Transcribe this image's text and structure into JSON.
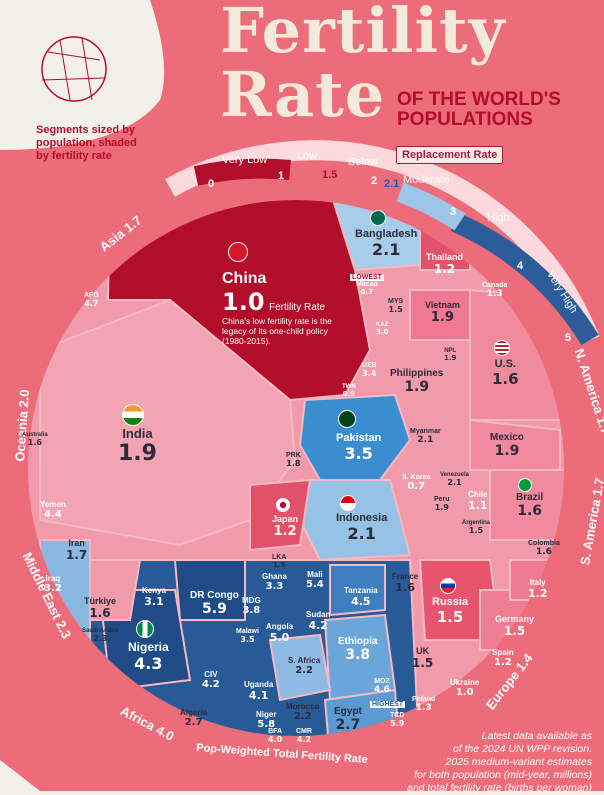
{
  "header": {
    "title_line1": "Fertility",
    "title_line2": "Rate",
    "subtitle_line1": "OF THE WORLD'S",
    "subtitle_line2": "POPULATIONS"
  },
  "legend": {
    "text": "Segments sized by population, shaded by fertility rate"
  },
  "scale": {
    "labels": [
      "Very Low",
      "Low",
      "Below",
      "Moderate",
      "High",
      "Very High"
    ],
    "ticks": [
      "0",
      "1",
      "1.5",
      "2",
      "2.1",
      "3",
      "4",
      "5"
    ],
    "replacement_label": "Replacement Rate"
  },
  "regions": {
    "asia": "Asia 1.7",
    "oceania": "Oceania 2.0",
    "middle_east": "Middle East 2.3",
    "africa": "Africa 4.0",
    "europe": "Europe 1.4",
    "s_america": "S. America 1.7",
    "n_america": "N. America 1.7"
  },
  "footer": {
    "pop_weighted": "Pop-Weighted Total Fertility Rate",
    "note_line1": "Latest data available as",
    "note_line2": "of the 2024 UN WPP revision.",
    "note_line3": "2025 medium-variant estimates",
    "note_line4": "for both population (mid-year, millions)",
    "note_line5": "and total fertility rate (births per woman)"
  },
  "china": {
    "name": "China",
    "value": "1.0",
    "unit": "Fertility Rate",
    "note": "China's low fertility rate is the legacy of its one-child policy (1980-2015)."
  },
  "macao": {
    "flag": "LOWEST",
    "name": "Macao",
    "value": "0.7"
  },
  "countries": [
    {
      "name": "India",
      "value": "1.9"
    },
    {
      "name": "Bangladesh",
      "value": "2.1"
    },
    {
      "name": "Thailand",
      "value": "1.2"
    },
    {
      "name": "Vietnam",
      "value": "1.9"
    },
    {
      "name": "Philippines",
      "value": "1.9"
    },
    {
      "name": "Pakistan",
      "value": "3.5"
    },
    {
      "name": "Indonesia",
      "value": "2.1"
    },
    {
      "name": "Japan",
      "value": "1.2"
    },
    {
      "name": "U.S.",
      "value": "1.6"
    },
    {
      "name": "Mexico",
      "value": "1.9"
    },
    {
      "name": "Brazil",
      "value": "1.6"
    },
    {
      "name": "Chile",
      "value": "1.1"
    },
    {
      "name": "S. Korea",
      "value": "0.7"
    },
    {
      "name": "Nigeria",
      "value": "4.3"
    },
    {
      "name": "DR Congo",
      "value": "5.9"
    },
    {
      "name": "Ethiopia",
      "value": "3.8"
    },
    {
      "name": "Egypt",
      "value": "2.7"
    },
    {
      "name": "Russia",
      "value": "1.5"
    },
    {
      "name": "Germany",
      "value": "1.5"
    },
    {
      "name": "Iran",
      "value": "1.7"
    },
    {
      "name": "Türkiye",
      "value": "1.6"
    },
    {
      "name": "Canada",
      "value": "1.3"
    },
    {
      "name": "UK",
      "value": "1.5"
    },
    {
      "name": "France",
      "value": "1.6"
    },
    {
      "name": "Italy",
      "value": "1.2"
    },
    {
      "name": "Spain",
      "value": "1.2"
    },
    {
      "name": "Ukraine",
      "value": "1.0"
    },
    {
      "name": "Poland",
      "value": "1.3"
    },
    {
      "name": "Tanzania",
      "value": "4.5"
    },
    {
      "name": "Kenya",
      "value": "3.1"
    },
    {
      "name": "Sudan",
      "value": "4.2"
    },
    {
      "name": "Uganda",
      "value": "4.1"
    },
    {
      "name": "Angola",
      "value": "5.0"
    },
    {
      "name": "Morocco",
      "value": "2.2"
    },
    {
      "name": "Algeria",
      "value": "2.7"
    },
    {
      "name": "S. Africa",
      "value": "2.2"
    },
    {
      "name": "Myanmar",
      "value": "2.1"
    },
    {
      "name": "Iraq",
      "value": "3.2"
    },
    {
      "name": "Yemen",
      "value": "4.4"
    },
    {
      "name": "Colombia",
      "value": "1.6"
    },
    {
      "name": "Argentina",
      "value": "1.5"
    },
    {
      "name": "Peru",
      "value": "1.9"
    },
    {
      "name": "Mali",
      "value": "5.4"
    },
    {
      "name": "Ghana",
      "value": "3.3"
    },
    {
      "name": "Niger",
      "value": "5.8"
    },
    {
      "name": "Venezuela",
      "value": "2.1"
    },
    {
      "name": "MDG",
      "value": "3.8"
    },
    {
      "name": "CIV",
      "value": "4.2"
    },
    {
      "name": "PRK",
      "value": "1.8"
    },
    {
      "name": "AFG",
      "value": "4.7"
    },
    {
      "name": "UZB",
      "value": "3.4"
    },
    {
      "name": "KAZ",
      "value": "3.0"
    },
    {
      "name": "MYS",
      "value": "1.5"
    },
    {
      "name": "NPL",
      "value": "1.9"
    },
    {
      "name": "TWN",
      "value": "0.9"
    },
    {
      "name": "Australia",
      "value": "1.6"
    },
    {
      "name": "Saudi Arabia",
      "value": "2.3"
    },
    {
      "name": "HIGHEST",
      "value": ""
    },
    {
      "name": "MOZ",
      "value": "4.6"
    },
    {
      "name": "LKA",
      "value": "1.9"
    },
    {
      "name": "Malawi",
      "value": "3.5"
    },
    {
      "name": "BFA",
      "value": "4.0"
    },
    {
      "name": "CMR",
      "value": "4.2"
    },
    {
      "name": "TCD",
      "value": "5.9"
    }
  ]
}
